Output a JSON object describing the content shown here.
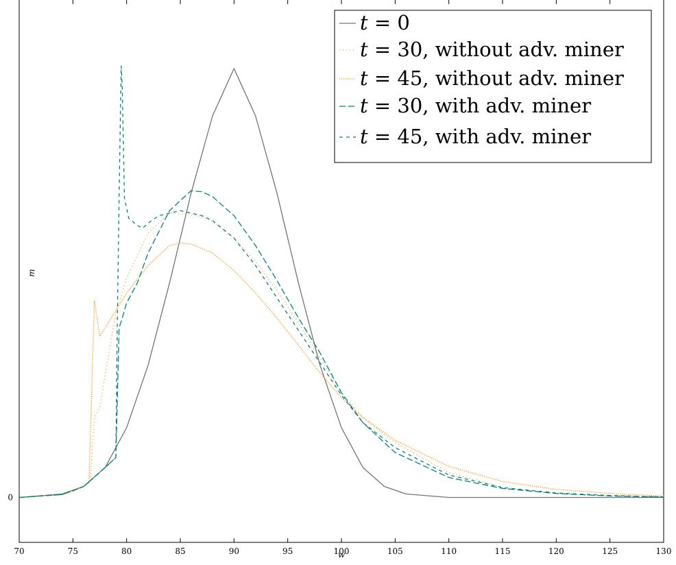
{
  "chart_data": {
    "type": "line",
    "title": "",
    "xlabel": "w",
    "ylabel": "m",
    "xlim": [
      70,
      130
    ],
    "ylim": [
      -0.09,
      1.0
    ],
    "x_ticks": [
      70,
      75,
      80,
      85,
      90,
      95,
      100,
      105,
      110,
      115,
      120,
      125,
      130
    ],
    "y_ticks": [
      0
    ],
    "grid": false,
    "legend_position": "top-right",
    "series": [
      {
        "name": "t = 0",
        "color": "#737373",
        "dash": "solid",
        "x": [
          70,
          74,
          76,
          78,
          80,
          82,
          84,
          86,
          88,
          90,
          92,
          94,
          96,
          98,
          100,
          102,
          104,
          106,
          110,
          115,
          120,
          125,
          130
        ],
        "y": [
          0.0,
          0.007,
          0.022,
          0.06,
          0.14,
          0.265,
          0.43,
          0.61,
          0.765,
          0.86,
          0.765,
          0.61,
          0.43,
          0.265,
          0.14,
          0.06,
          0.022,
          0.007,
          0.0,
          0.0,
          0.0,
          0.0,
          0.0
        ]
      },
      {
        "name": "t = 30, without adv. miner",
        "color": "#ff8c00",
        "dash": "dotted-sparse",
        "x": [
          70,
          74,
          75,
          76,
          76.6,
          77,
          77.5,
          78,
          79,
          80,
          82,
          84,
          86,
          87,
          88,
          90,
          92,
          94,
          96,
          98,
          100,
          102,
          105,
          110,
          115,
          120,
          125,
          130
        ],
        "y": [
          0.0,
          0.006,
          0.012,
          0.022,
          0.03,
          0.16,
          0.18,
          0.245,
          0.37,
          0.44,
          0.53,
          0.57,
          0.567,
          0.563,
          0.553,
          0.52,
          0.473,
          0.415,
          0.35,
          0.28,
          0.21,
          0.16,
          0.11,
          0.05,
          0.02,
          0.008,
          0.003,
          0.001
        ]
      },
      {
        "name": "t = 45, without adv. miner",
        "color": "#ff8c00",
        "dash": "dotted-dense",
        "x": [
          70,
          74,
          75,
          76,
          76.5,
          77,
          77.5,
          78,
          79,
          80,
          82,
          84,
          85,
          86,
          88,
          90,
          92,
          94,
          96,
          98,
          100,
          102,
          105,
          110,
          115,
          120,
          125,
          130
        ],
        "y": [
          0.0,
          0.006,
          0.012,
          0.022,
          0.03,
          0.395,
          0.323,
          0.34,
          0.375,
          0.41,
          0.465,
          0.505,
          0.51,
          0.508,
          0.49,
          0.455,
          0.41,
          0.36,
          0.305,
          0.25,
          0.2,
          0.16,
          0.115,
          0.062,
          0.032,
          0.016,
          0.008,
          0.003
        ]
      },
      {
        "name": "t = 30, with adv. miner",
        "color": "#008080",
        "dash": "dashed-long",
        "x": [
          70,
          74,
          76,
          78,
          79,
          79.3,
          79.6,
          80,
          81,
          82,
          84,
          86,
          87,
          88,
          90,
          92,
          94,
          96,
          98,
          100,
          102,
          105,
          110,
          115,
          120,
          125,
          130
        ],
        "y": [
          0.0,
          0.006,
          0.022,
          0.06,
          0.08,
          0.34,
          0.36,
          0.39,
          0.43,
          0.49,
          0.575,
          0.615,
          0.613,
          0.603,
          0.565,
          0.505,
          0.435,
          0.36,
          0.29,
          0.21,
          0.15,
          0.09,
          0.04,
          0.018,
          0.008,
          0.003,
          0.001
        ]
      },
      {
        "name": "t = 45, with adv. miner",
        "color": "#008080",
        "dash": "dashed-short",
        "x": [
          70,
          74,
          76,
          78,
          79,
          79.1,
          79.3,
          79.5,
          79.6,
          79.8,
          80.2,
          81,
          81.5,
          82,
          83,
          84,
          85,
          86,
          87,
          88,
          90,
          92,
          94,
          96,
          98,
          100,
          102,
          105,
          110,
          115,
          120,
          125,
          130
        ],
        "y": [
          0.0,
          0.006,
          0.022,
          0.06,
          0.08,
          0.3,
          0.6,
          0.865,
          0.82,
          0.6,
          0.56,
          0.545,
          0.54,
          0.55,
          0.565,
          0.57,
          0.575,
          0.57,
          0.565,
          0.555,
          0.52,
          0.465,
          0.4,
          0.335,
          0.27,
          0.205,
          0.15,
          0.1,
          0.045,
          0.02,
          0.009,
          0.004,
          0.001
        ]
      }
    ]
  },
  "legend": {
    "items": [
      {
        "prefix": "t",
        "text": " = 0"
      },
      {
        "prefix": "t",
        "text": " = 30, without adv. miner"
      },
      {
        "prefix": "t",
        "text": " = 45, without adv. miner"
      },
      {
        "prefix": "t",
        "text": " = 30, with adv. miner"
      },
      {
        "prefix": "t",
        "text": " = 45, with adv. miner"
      }
    ]
  }
}
